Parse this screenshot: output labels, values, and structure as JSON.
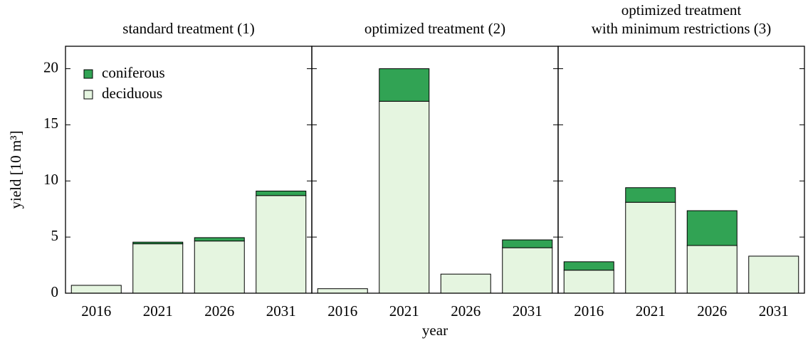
{
  "chart_data": [
    {
      "type": "bar",
      "stacked": true,
      "title": [
        "standard treatment (1)"
      ],
      "ylabel": "yield [10 m³]",
      "categories": [
        "2016",
        "2021",
        "2026",
        "2031"
      ],
      "series": [
        {
          "name": "deciduous",
          "color": "#e5f5e0",
          "values": [
            0.7,
            4.4,
            4.65,
            8.7
          ]
        },
        {
          "name": "coniferous",
          "color": "#31a354",
          "values": [
            0,
            0.15,
            0.3,
            0.4
          ]
        }
      ],
      "ylim": [
        0,
        22
      ],
      "yticks": [
        0,
        5,
        10,
        15,
        20
      ],
      "legend": "upper left"
    },
    {
      "type": "bar",
      "stacked": true,
      "title": [
        "optimized treatment (2)"
      ],
      "xlabel": "year",
      "categories": [
        "2016",
        "2021",
        "2026",
        "2031"
      ],
      "series": [
        {
          "name": "deciduous",
          "color": "#e5f5e0",
          "values": [
            0.4,
            17.1,
            1.7,
            4.05
          ]
        },
        {
          "name": "coniferous",
          "color": "#31a354",
          "values": [
            0,
            2.9,
            0,
            0.7
          ]
        }
      ],
      "ylim": [
        0,
        22
      ],
      "yticks": [
        0,
        5,
        10,
        15,
        20
      ]
    },
    {
      "type": "bar",
      "stacked": true,
      "title": [
        "optimized treatment",
        "with minimum restrictions (3)"
      ],
      "categories": [
        "2016",
        "2021",
        "2026",
        "2031"
      ],
      "series": [
        {
          "name": "deciduous",
          "color": "#e5f5e0",
          "values": [
            2.05,
            8.1,
            4.25,
            3.3
          ]
        },
        {
          "name": "coniferous",
          "color": "#31a354",
          "values": [
            0.75,
            1.3,
            3.1,
            0
          ]
        }
      ],
      "ylim": [
        0,
        22
      ],
      "yticks": [
        0,
        5,
        10,
        15,
        20
      ]
    }
  ]
}
